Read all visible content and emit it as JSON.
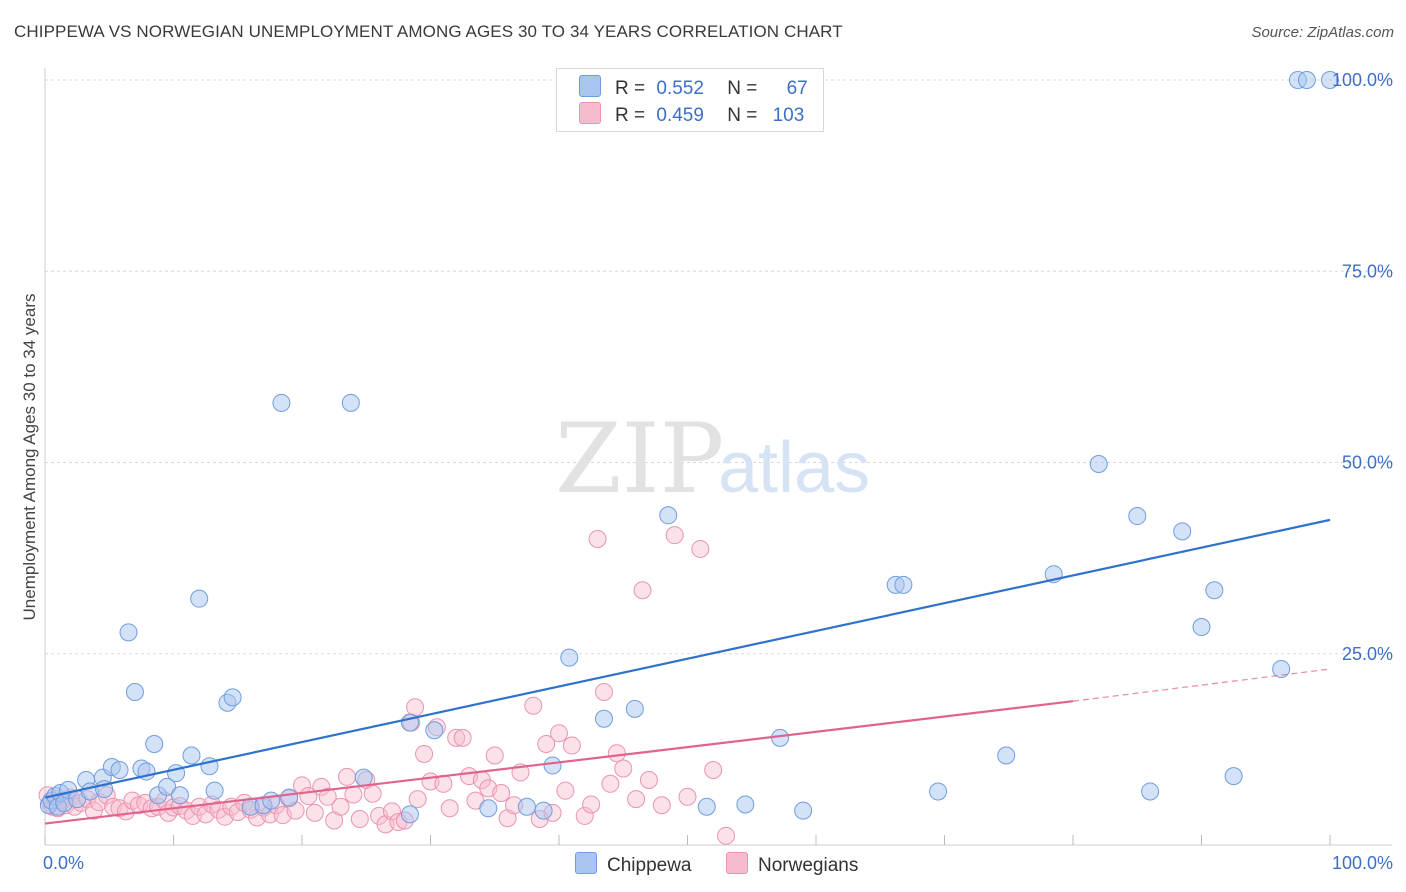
{
  "header": {
    "title": "CHIPPEWA VS NORWEGIAN UNEMPLOYMENT AMONG AGES 30 TO 34 YEARS CORRELATION CHART",
    "source": "Source: ZipAtlas.com"
  },
  "watermark": {
    "zip": "ZIP",
    "atlas": "atlas"
  },
  "legend": {
    "rows": [
      {
        "r_label": "R =",
        "r_value": "0.552",
        "n_label": "N =",
        "n_value": "67"
      },
      {
        "r_label": "R =",
        "r_value": "0.459",
        "n_label": "N =",
        "n_value": "103"
      }
    ],
    "bottom": [
      "Chippewa",
      "Norwegians"
    ]
  },
  "colors": {
    "chippewa_fill": "#a9c6f0",
    "chippewa_stroke": "#6f9de0",
    "chippewa_line": "#2f72cc",
    "norwegian_fill": "#f6bccd",
    "norwegian_stroke": "#eb94b0",
    "norwegian_line": "#e0638f",
    "tick_text": "#3d6fc4",
    "grid": "#d9d9d9"
  },
  "chart_data": {
    "type": "scatter",
    "title": "CHIPPEWA VS NORWEGIAN UNEMPLOYMENT AMONG AGES 30 TO 34 YEARS CORRELATION CHART",
    "xlabel": "",
    "ylabel": "Unemployment Among Ages 30 to 34 years",
    "xlim": [
      0,
      100
    ],
    "ylim": [
      0,
      100
    ],
    "x_tick_labels": [
      "0.0%",
      "100.0%"
    ],
    "y_ticks": [
      25,
      50,
      75,
      100
    ],
    "y_tick_labels": [
      "25.0%",
      "50.0%",
      "75.0%",
      "100.0%"
    ],
    "grid": true,
    "series": [
      {
        "name": "Chippewa",
        "R": 0.552,
        "N": 67,
        "trend": {
          "x": [
            0,
            100
          ],
          "y": [
            6.2,
            42.5
          ]
        },
        "points": [
          [
            0.3,
            5.2
          ],
          [
            0.5,
            5.8
          ],
          [
            0.8,
            6.4
          ],
          [
            1.0,
            5.0
          ],
          [
            1.2,
            6.8
          ],
          [
            1.5,
            5.5
          ],
          [
            1.8,
            7.2
          ],
          [
            2.5,
            6.0
          ],
          [
            3.2,
            8.5
          ],
          [
            3.5,
            7.0
          ],
          [
            4.5,
            8.8
          ],
          [
            4.6,
            7.3
          ],
          [
            5.2,
            10.2
          ],
          [
            5.8,
            9.8
          ],
          [
            6.5,
            27.8
          ],
          [
            7.0,
            20.0
          ],
          [
            7.5,
            10.0
          ],
          [
            7.9,
            9.6
          ],
          [
            8.5,
            13.2
          ],
          [
            8.8,
            6.5
          ],
          [
            9.5,
            7.6
          ],
          [
            10.2,
            9.4
          ],
          [
            10.5,
            6.5
          ],
          [
            11.4,
            11.7
          ],
          [
            12.0,
            32.2
          ],
          [
            12.8,
            10.3
          ],
          [
            13.2,
            7.1
          ],
          [
            14.2,
            18.6
          ],
          [
            14.6,
            19.3
          ],
          [
            16.0,
            5.0
          ],
          [
            17.0,
            5.2
          ],
          [
            17.6,
            5.8
          ],
          [
            18.4,
            57.8
          ],
          [
            19.0,
            6.2
          ],
          [
            23.8,
            57.8
          ],
          [
            24.8,
            8.8
          ],
          [
            28.4,
            16.0
          ],
          [
            28.4,
            4.0
          ],
          [
            30.3,
            15.0
          ],
          [
            34.5,
            4.8
          ],
          [
            37.5,
            5.0
          ],
          [
            38.8,
            4.5
          ],
          [
            39.5,
            10.4
          ],
          [
            40.8,
            24.5
          ],
          [
            43.5,
            16.5
          ],
          [
            45.9,
            17.8
          ],
          [
            48.5,
            43.1
          ],
          [
            51.5,
            5.0
          ],
          [
            54.5,
            5.3
          ],
          [
            57.2,
            14.0
          ],
          [
            59.0,
            4.5
          ],
          [
            66.2,
            34.0
          ],
          [
            66.8,
            34.0
          ],
          [
            69.5,
            7.0
          ],
          [
            74.8,
            11.7
          ],
          [
            78.5,
            35.4
          ],
          [
            82.0,
            49.8
          ],
          [
            85.0,
            43.0
          ],
          [
            86.0,
            7.0
          ],
          [
            88.5,
            41.0
          ],
          [
            90.0,
            28.5
          ],
          [
            91.0,
            33.3
          ],
          [
            92.5,
            9.0
          ],
          [
            96.2,
            23.0
          ],
          [
            97.5,
            100.0
          ],
          [
            98.2,
            100.0
          ],
          [
            100.0,
            100.0
          ]
        ]
      },
      {
        "name": "Norwegians",
        "R": 0.459,
        "N": 103,
        "trend": {
          "x": [
            0,
            80
          ],
          "y": [
            2.8,
            18.8
          ]
        },
        "trend_dashed": {
          "x": [
            80,
            100
          ],
          "y": [
            18.8,
            23.0
          ]
        },
        "points": [
          [
            0.2,
            6.5
          ],
          [
            0.4,
            5.5
          ],
          [
            0.6,
            5.0
          ],
          [
            0.8,
            6.0
          ],
          [
            1.0,
            4.8
          ],
          [
            1.3,
            5.8
          ],
          [
            1.6,
            5.2
          ],
          [
            2.0,
            6.2
          ],
          [
            2.3,
            5.0
          ],
          [
            2.8,
            5.5
          ],
          [
            3.3,
            6.0
          ],
          [
            3.8,
            4.5
          ],
          [
            4.2,
            5.6
          ],
          [
            4.8,
            6.5
          ],
          [
            5.3,
            5.0
          ],
          [
            5.8,
            4.8
          ],
          [
            6.3,
            4.4
          ],
          [
            6.8,
            5.8
          ],
          [
            7.3,
            5.2
          ],
          [
            7.8,
            5.5
          ],
          [
            8.3,
            4.8
          ],
          [
            8.8,
            5.0
          ],
          [
            9.3,
            5.8
          ],
          [
            9.6,
            4.2
          ],
          [
            10.0,
            4.9
          ],
          [
            10.5,
            5.1
          ],
          [
            11.0,
            4.5
          ],
          [
            11.5,
            3.8
          ],
          [
            12.0,
            5.0
          ],
          [
            12.5,
            4.0
          ],
          [
            13.0,
            5.3
          ],
          [
            13.5,
            4.6
          ],
          [
            14.0,
            3.7
          ],
          [
            14.5,
            5.0
          ],
          [
            15.0,
            4.3
          ],
          [
            15.5,
            5.5
          ],
          [
            16.0,
            4.6
          ],
          [
            16.5,
            3.6
          ],
          [
            17.0,
            4.9
          ],
          [
            17.5,
            4.0
          ],
          [
            18.0,
            5.2
          ],
          [
            18.5,
            3.9
          ],
          [
            19.0,
            6.1
          ],
          [
            19.5,
            4.5
          ],
          [
            20.0,
            7.8
          ],
          [
            20.5,
            6.4
          ],
          [
            21.0,
            4.2
          ],
          [
            21.5,
            7.6
          ],
          [
            22.0,
            6.3
          ],
          [
            22.5,
            3.2
          ],
          [
            23.0,
            5.0
          ],
          [
            23.5,
            8.9
          ],
          [
            24.0,
            6.6
          ],
          [
            24.5,
            3.4
          ],
          [
            25.0,
            8.5
          ],
          [
            25.5,
            6.7
          ],
          [
            26.0,
            3.8
          ],
          [
            26.5,
            2.7
          ],
          [
            27.0,
            4.4
          ],
          [
            27.5,
            3.0
          ],
          [
            28.0,
            3.2
          ],
          [
            28.5,
            16.0
          ],
          [
            28.8,
            18.0
          ],
          [
            29.0,
            6.0
          ],
          [
            29.5,
            11.9
          ],
          [
            30.0,
            8.3
          ],
          [
            30.5,
            15.4
          ],
          [
            31.0,
            8.0
          ],
          [
            31.5,
            4.8
          ],
          [
            32.0,
            14.0
          ],
          [
            32.5,
            14.0
          ],
          [
            33.0,
            9.0
          ],
          [
            33.5,
            5.8
          ],
          [
            34.0,
            8.5
          ],
          [
            34.5,
            7.4
          ],
          [
            35.0,
            11.7
          ],
          [
            35.5,
            6.8
          ],
          [
            36.0,
            3.5
          ],
          [
            36.5,
            5.2
          ],
          [
            37.0,
            9.5
          ],
          [
            38.0,
            18.2
          ],
          [
            38.5,
            3.4
          ],
          [
            39.0,
            13.2
          ],
          [
            39.5,
            4.2
          ],
          [
            40.0,
            14.6
          ],
          [
            40.5,
            7.1
          ],
          [
            41.0,
            13.0
          ],
          [
            42.0,
            3.8
          ],
          [
            42.5,
            5.3
          ],
          [
            43.0,
            40.0
          ],
          [
            43.5,
            20.0
          ],
          [
            44.0,
            8.0
          ],
          [
            44.5,
            12.0
          ],
          [
            45.0,
            10.0
          ],
          [
            46.0,
            6.0
          ],
          [
            46.5,
            33.3
          ],
          [
            47.0,
            8.5
          ],
          [
            48.0,
            5.2
          ],
          [
            49.0,
            40.5
          ],
          [
            50.0,
            6.3
          ],
          [
            51.0,
            38.7
          ],
          [
            52.0,
            9.8
          ],
          [
            53.0,
            1.2
          ]
        ]
      }
    ]
  }
}
